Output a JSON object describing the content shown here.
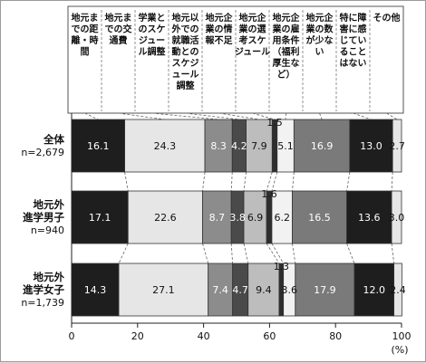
{
  "chart_data": {
    "type": "bar",
    "stacked": true,
    "orientation": "horizontal",
    "percent_stacked": true,
    "unit": "(%)",
    "xlim": [
      0,
      100
    ],
    "x_ticks": [
      "0",
      "20",
      "40",
      "60",
      "80",
      "100"
    ],
    "categories": [
      {
        "name": "全体",
        "n": "n=2,679"
      },
      {
        "name": "地元外進学男子",
        "name_lines": [
          "地元外",
          "進学男子"
        ],
        "n": "n=940"
      },
      {
        "name": "地元外進学女子",
        "name_lines": [
          "地元外",
          "進学女子"
        ],
        "n": "n=1,739"
      }
    ],
    "series": [
      {
        "name": "地元までの距離・時間",
        "label_lines": [
          "地元ま",
          "での距",
          "離・時",
          "間"
        ],
        "color": "#1e1e1e",
        "text_color": "#ffffff",
        "values": [
          16.1,
          17.1,
          14.3
        ],
        "labels": [
          "16.1",
          "17.1",
          "14.3"
        ]
      },
      {
        "name": "地元までの交通費",
        "label_lines": [
          "地元ま",
          "での交",
          "通費"
        ],
        "color": "#e6e6e6",
        "text_color": "#111111",
        "values": [
          24.3,
          22.6,
          27.1
        ],
        "labels": [
          "24.3",
          "22.6",
          "27.1"
        ]
      },
      {
        "name": "学業とのスケジュール調整",
        "label_lines": [
          "学業と",
          "のスケ",
          "ジュー",
          "ル調整"
        ],
        "color": "#8c8c8c",
        "text_color": "#ffffff",
        "values": [
          8.3,
          8.7,
          7.4
        ],
        "labels": [
          "8.3",
          "8.7",
          "7.4"
        ]
      },
      {
        "name": "地元以外での就職活動とのスケジュール調整",
        "label_lines": [
          "地元以",
          "外での",
          "就職活",
          "動との",
          "スケジ",
          "ュール",
          "調整"
        ],
        "color": "#4a4a4a",
        "text_color": "#ffffff",
        "values": [
          4.2,
          3.8,
          4.7
        ],
        "labels": [
          "4.2",
          "3.8",
          "4.7"
        ]
      },
      {
        "name": "地元企業の情報不足",
        "label_lines": [
          "地元企",
          "業の情",
          "報不足"
        ],
        "color": "#bdbdbd",
        "text_color": "#111111",
        "values": [
          7.9,
          6.9,
          9.4
        ],
        "labels": [
          "7.9",
          "6.9",
          "9.4"
        ]
      },
      {
        "name": "地元企業の選考スケジュール",
        "label_lines": [
          "地元企",
          "業の選",
          "考スケ",
          "ジュール"
        ],
        "color": "#2e2e2e",
        "text_color": "#111111",
        "values": [
          1.5,
          1.6,
          1.3
        ],
        "labels": [
          "1.5",
          "1.6",
          "1.3"
        ]
      },
      {
        "name": "地元企業の雇用条件（福利厚生など）",
        "label_lines": [
          "地元企",
          "業の雇",
          "用条件",
          "（福利",
          "厚生な",
          "ど）"
        ],
        "color": "#f2f2f2",
        "text_color": "#111111",
        "values": [
          5.1,
          6.2,
          3.6
        ],
        "labels": [
          "5.1",
          "6.2",
          "3.6"
        ]
      },
      {
        "name": "地元企業の数が少ない",
        "label_lines": [
          "地元企",
          "業の数",
          "が少な",
          "い"
        ],
        "color": "#7a7a7a",
        "text_color": "#ffffff",
        "values": [
          16.9,
          16.5,
          17.9
        ],
        "labels": [
          "16.9",
          "16.5",
          "17.9"
        ]
      },
      {
        "name": "特に障害に感じていることはない",
        "label_lines": [
          "特に障",
          "害に感",
          "じてい",
          "ること",
          "はない"
        ],
        "color": "#1e1e1e",
        "text_color": "#ffffff",
        "values": [
          13.0,
          13.6,
          12.0
        ],
        "labels": [
          "13.0",
          "13.6",
          "12.0"
        ]
      },
      {
        "name": "その他",
        "label_lines": [
          "その他"
        ],
        "color": "#e6e6e6",
        "text_color": "#111111",
        "values": [
          2.7,
          3.0,
          2.4
        ],
        "labels": [
          "2.7",
          "3.0",
          "2.4"
        ]
      }
    ]
  }
}
